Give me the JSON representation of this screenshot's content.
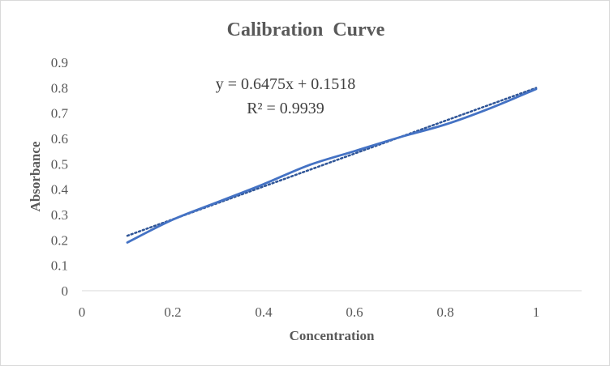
{
  "chart_data": {
    "type": "line",
    "title": "Calibration  Curve",
    "xlabel": "Concentration",
    "ylabel": "Absorbance",
    "xlim": [
      0,
      1.1
    ],
    "ylim": [
      0,
      0.9
    ],
    "x_ticks": [
      "0",
      "0.2",
      "0.4",
      "0.6",
      "0.8",
      "1"
    ],
    "y_ticks": [
      "0",
      "0.1",
      "0.2",
      "0.3",
      "0.4",
      "0.5",
      "0.6",
      "0.7",
      "0.8",
      "0.9"
    ],
    "grid": false,
    "legend": false,
    "series": [
      {
        "x": [
          0.1,
          0.2,
          0.3,
          0.4,
          0.5,
          0.6,
          0.7,
          0.8,
          0.9,
          1.0
        ],
        "values": [
          0.19,
          0.28,
          0.35,
          0.42,
          0.495,
          0.55,
          0.605,
          0.655,
          0.72,
          0.795
        ],
        "color": "#4472c4"
      }
    ],
    "trendline": {
      "type": "linear",
      "slope": 0.6475,
      "intercept": 0.1518,
      "x_range": [
        0.1,
        1.0
      ],
      "color": "#2f5597",
      "style": "dotted",
      "equation_text": "y = 0.6475x + 0.1518",
      "r2_text": "R² = 0.9939"
    }
  }
}
